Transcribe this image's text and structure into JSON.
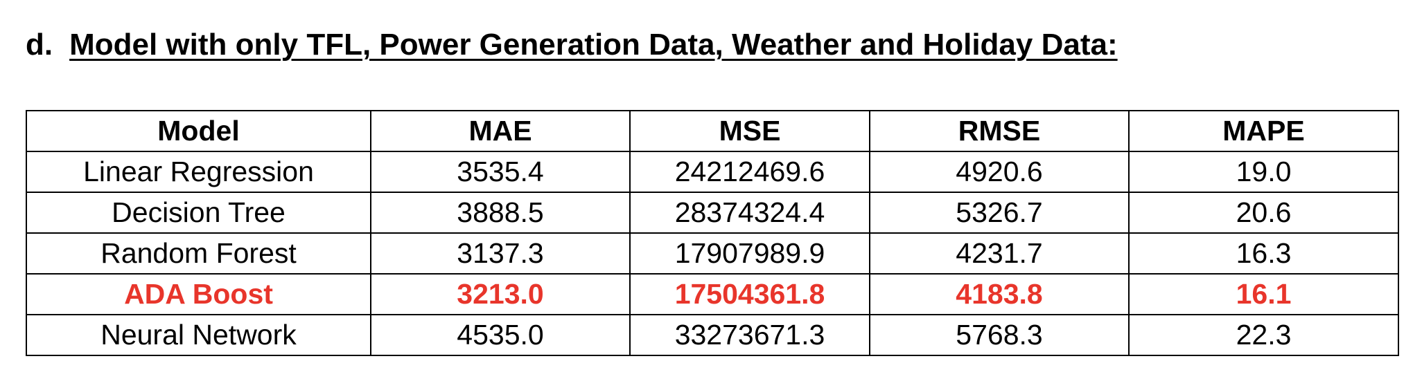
{
  "heading": {
    "prefix": "d.",
    "title": "Model with only TFL, Power Generation Data, Weather and Holiday Data:"
  },
  "table": {
    "columns": [
      "Model",
      "MAE",
      "MSE",
      "RMSE",
      "MAPE"
    ],
    "rows": [
      {
        "model": "Linear Regression",
        "mae": "3535.4",
        "mse": "24212469.6",
        "rmse": "4920.6",
        "mape": "19.0",
        "highlight": false
      },
      {
        "model": "Decision Tree",
        "mae": "3888.5",
        "mse": "28374324.4",
        "rmse": "5326.7",
        "mape": "20.6",
        "highlight": false
      },
      {
        "model": "Random Forest",
        "mae": "3137.3",
        "mse": "17907989.9",
        "rmse": "4231.7",
        "mape": "16.3",
        "highlight": false
      },
      {
        "model": "ADA Boost",
        "mae": "3213.0",
        "mse": "17504361.8",
        "rmse": "4183.8",
        "mape": "16.1",
        "highlight": true
      },
      {
        "model": "Neural Network",
        "mae": "4535.0",
        "mse": "33273671.3",
        "rmse": "5768.3",
        "mape": "22.3",
        "highlight": false
      }
    ],
    "highlight_color": "#e8352b",
    "text_color": "#000000",
    "border_color": "#000000"
  }
}
